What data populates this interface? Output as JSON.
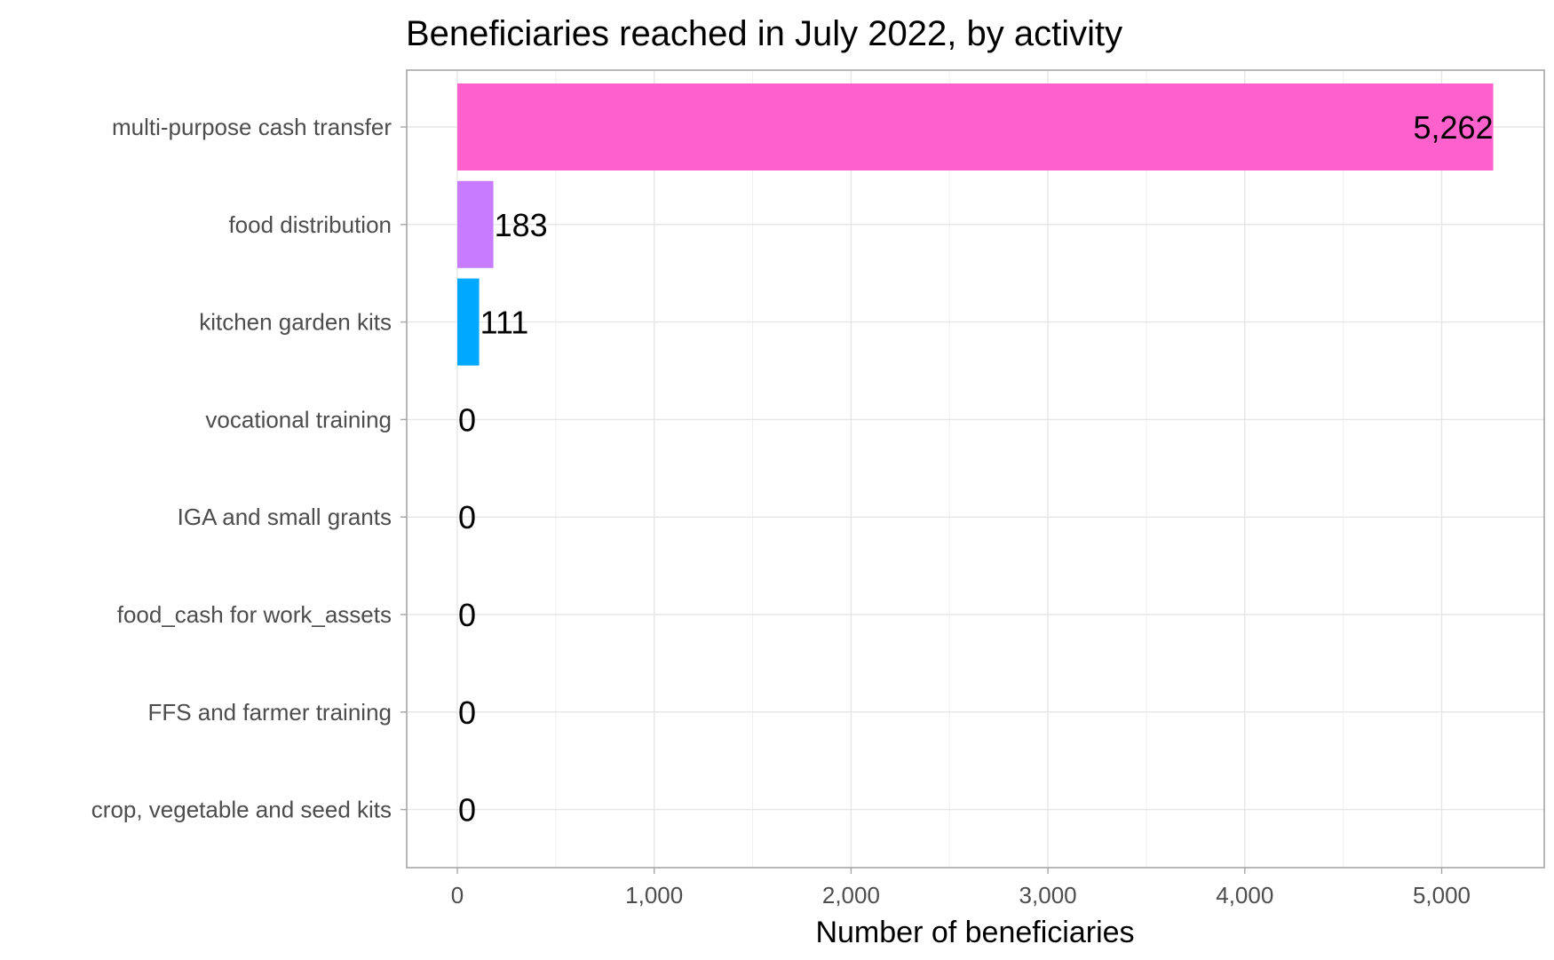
{
  "chart_data": {
    "type": "bar",
    "orientation": "horizontal",
    "title": "Beneficiaries reached in July 2022, by activity",
    "xlabel": "Number of beneficiaries",
    "ylabel": "",
    "categories": [
      "multi-purpose cash transfer",
      "food distribution",
      "kitchen garden kits",
      "vocational training",
      "IGA and small grants",
      "food_cash for work_assets",
      "FFS and farmer training",
      "crop, vegetable and seed kits"
    ],
    "values": [
      5262,
      183,
      111,
      0,
      0,
      0,
      0,
      0
    ],
    "data_labels": [
      "5,262",
      "183",
      "111",
      "0",
      "0",
      "0",
      "0",
      "0"
    ],
    "colors": [
      "#FF61CC",
      "#C77CFF",
      "#00A9FF",
      "#00BFC4",
      "#00BE67",
      "#7CAE00",
      "#CD9600",
      "#F8766D"
    ],
    "xlim": [
      -260,
      5500
    ],
    "x_ticks": [
      0,
      1000,
      2000,
      3000,
      4000,
      5000
    ],
    "x_tick_labels": [
      "0",
      "1,000",
      "2,000",
      "3,000",
      "4,000",
      "5,000"
    ],
    "grid": true,
    "legend": "none"
  }
}
